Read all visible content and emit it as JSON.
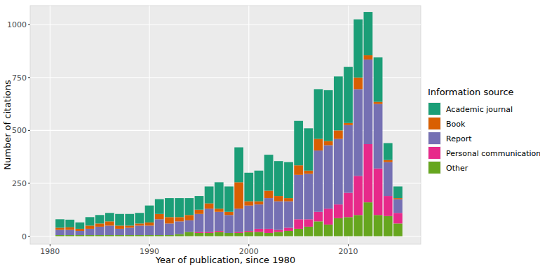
{
  "chart_data": {
    "type": "bar",
    "stacked": true,
    "grid": true,
    "legend": "right",
    "x_label": "Year of publication, since 1980",
    "y_label": "Number of citations",
    "legend_title": "Information source",
    "categories": [
      1981,
      1982,
      1983,
      1984,
      1985,
      1986,
      1987,
      1988,
      1989,
      1990,
      1991,
      1992,
      1993,
      1994,
      1995,
      1996,
      1997,
      1998,
      1999,
      2000,
      2001,
      2002,
      2003,
      2004,
      2005,
      2006,
      2007,
      2008,
      2009,
      2010,
      2011,
      2012,
      2013,
      2014,
      2015
    ],
    "xlim": [
      1978,
      2017.3
    ],
    "xticks": [
      1980,
      1990,
      2000,
      2010
    ],
    "ylim": [
      -38,
      1090
    ],
    "yticks": [
      0,
      250,
      500,
      750,
      {
        "value": 1000,
        "label": "1000"
      }
    ],
    "series": [
      {
        "name": "Other",
        "color": "#66a61e",
        "values": [
          5,
          5,
          5,
          5,
          5,
          5,
          5,
          5,
          5,
          5,
          5,
          5,
          10,
          20,
          15,
          15,
          20,
          15,
          15,
          20,
          20,
          15,
          20,
          25,
          35,
          45,
          70,
          55,
          85,
          90,
          100,
          160,
          100,
          95,
          60
        ]
      },
      {
        "name": "Personal communication",
        "color": "#e7298a",
        "values": [
          0,
          0,
          0,
          0,
          0,
          0,
          0,
          0,
          0,
          0,
          0,
          0,
          0,
          0,
          5,
          5,
          5,
          0,
          5,
          5,
          15,
          20,
          10,
          15,
          45,
          35,
          45,
          75,
          65,
          115,
          185,
          275,
          220,
          95,
          50
        ]
      },
      {
        "name": "Report",
        "color": "#7570b3",
        "values": [
          25,
          25,
          20,
          30,
          40,
          45,
          30,
          35,
          45,
          45,
          75,
          55,
          60,
          55,
          85,
          110,
          90,
          85,
          110,
          120,
          115,
          145,
          135,
          125,
          210,
          215,
          290,
          300,
          310,
          320,
          410,
          400,
          305,
          160,
          65
        ]
      },
      {
        "name": "Book",
        "color": "#d95f02",
        "values": [
          10,
          12,
          10,
          15,
          15,
          20,
          15,
          10,
          10,
          15,
          25,
          30,
          20,
          25,
          20,
          25,
          15,
          15,
          125,
          20,
          15,
          35,
          25,
          15,
          45,
          15,
          55,
          20,
          40,
          10,
          55,
          20,
          10,
          10,
          5
        ]
      },
      {
        "name": "Academic journal",
        "color": "#1b9e77",
        "values": [
          40,
          36,
          30,
          40,
          40,
          40,
          55,
          55,
          50,
          80,
          70,
          90,
          90,
          80,
          65,
          80,
          125,
          120,
          165,
          135,
          145,
          170,
          165,
          170,
          210,
          200,
          235,
          240,
          255,
          265,
          275,
          205,
          210,
          80,
          55
        ]
      }
    ]
  }
}
